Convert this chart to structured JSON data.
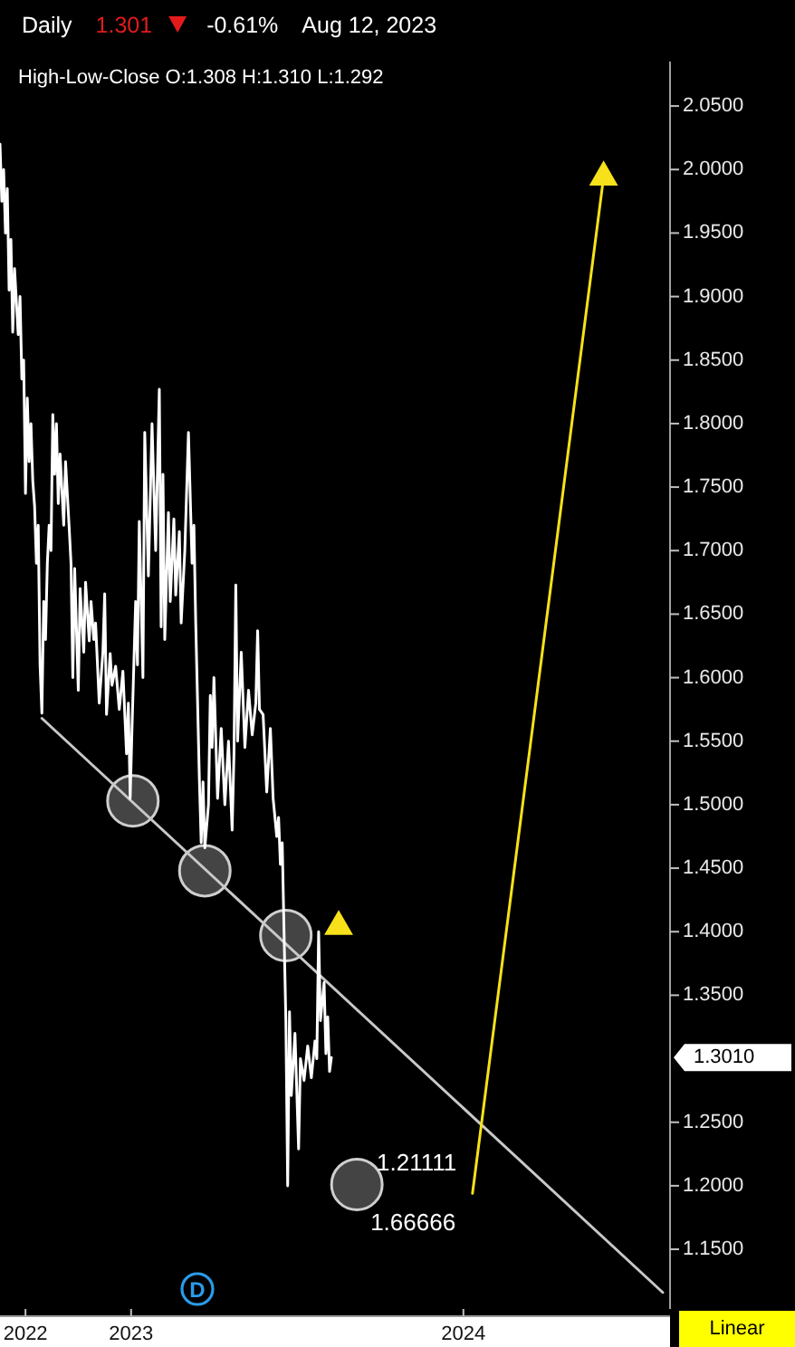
{
  "chart_data": {
    "type": "line",
    "title": "Daily",
    "subtitle": "High-Low-Close O:1.308 H:1.310 L:1.292",
    "x": [
      "2022-08-10",
      "2022-08-12",
      "2022-08-14",
      "2022-08-16",
      "2022-08-18",
      "2022-08-20",
      "2022-08-22",
      "2022-08-24",
      "2022-08-26",
      "2022-08-30",
      "2022-09-01",
      "2022-09-03",
      "2022-09-05",
      "2022-09-07",
      "2022-09-09",
      "2022-09-11",
      "2022-09-13",
      "2022-09-15",
      "2022-09-17",
      "2022-09-19",
      "2022-09-21",
      "2022-09-23",
      "2022-09-25",
      "2022-09-27",
      "2022-09-29",
      "2022-10-01",
      "2022-10-03",
      "2022-10-05",
      "2022-10-07",
      "2022-10-09",
      "2022-10-11",
      "2022-10-13",
      "2022-10-15",
      "2022-10-19",
      "2022-10-21",
      "2022-10-25",
      "2022-10-27",
      "2022-10-29",
      "2022-10-31",
      "2022-11-04",
      "2022-11-06",
      "2022-11-10",
      "2022-11-12",
      "2022-11-16",
      "2022-11-18",
      "2022-11-21",
      "2022-11-23",
      "2022-11-27",
      "2022-12-01",
      "2022-12-03",
      "2022-12-05",
      "2022-12-09",
      "2022-12-11",
      "2022-12-15",
      "2022-12-19",
      "2022-12-23",
      "2022-12-27",
      "2022-12-29",
      "2022-12-31",
      "2023-01-02",
      "2023-01-06",
      "2023-01-08",
      "2023-01-10",
      "2023-01-14",
      "2023-01-16",
      "2023-01-20",
      "2023-01-24",
      "2023-01-28",
      "2023-02-01",
      "2023-02-03",
      "2023-02-05",
      "2023-02-07",
      "2023-02-11",
      "2023-02-13",
      "2023-02-17",
      "2023-02-19",
      "2023-02-23",
      "2023-02-25",
      "2023-03-01",
      "2023-03-05",
      "2023-03-09",
      "2023-03-11",
      "2023-03-13",
      "2023-03-17",
      "2023-03-19",
      "2023-03-21",
      "2023-03-23",
      "2023-03-27",
      "2023-03-29",
      "2023-03-31",
      "2023-04-02",
      "2023-04-06",
      "2023-04-10",
      "2023-04-14",
      "2023-04-18",
      "2023-04-22",
      "2023-04-24",
      "2023-04-26",
      "2023-04-28",
      "2023-05-02",
      "2023-05-06",
      "2023-05-10",
      "2023-05-14",
      "2023-05-18",
      "2023-05-20",
      "2023-05-22",
      "2023-05-26",
      "2023-05-30",
      "2023-06-03",
      "2023-06-06",
      "2023-06-10",
      "2023-06-12",
      "2023-06-14",
      "2023-06-16",
      "2023-06-18",
      "2023-06-20",
      "2023-06-22",
      "2023-06-24",
      "2023-06-26",
      "2023-06-30",
      "2023-07-04",
      "2023-07-06",
      "2023-07-10",
      "2023-07-14",
      "2023-07-18",
      "2023-07-22",
      "2023-07-24",
      "2023-07-26",
      "2023-07-28",
      "2023-08-01",
      "2023-08-03",
      "2023-08-05",
      "2023-08-07",
      "2023-08-09"
    ],
    "series": [
      {
        "type": "scatter",
        "color": "#4a4a4a",
        "marker": "circle",
        "x": [
          "2023-01-03",
          "2023-03-23",
          "2023-06-20",
          "2023-09-06"
        ],
        "values": [
          1.503,
          1.448,
          1.397,
          1.201
        ]
      },
      {
        "type": "line",
        "color": "#c8c8c8",
        "x": [
          "2022-09-25",
          "2024-08-07"
        ],
        "values": [
          1.568,
          1.116
        ]
      },
      {
        "color": "#ffffff",
        "values": [
          2.02,
          1.975,
          2.0,
          1.95,
          1.985,
          1.905,
          1.945,
          1.872,
          1.922,
          1.87,
          1.9,
          1.835,
          1.85,
          1.745,
          1.82,
          1.77,
          1.8,
          1.755,
          1.735,
          1.69,
          1.72,
          1.61,
          1.572,
          1.66,
          1.63,
          1.69,
          1.72,
          1.7,
          1.807,
          1.76,
          1.8,
          1.737,
          1.776,
          1.72,
          1.77,
          1.718,
          1.69,
          1.6,
          1.686,
          1.59,
          1.67,
          1.62,
          1.675,
          1.629,
          1.66,
          1.63,
          1.643,
          1.58,
          1.62,
          1.666,
          1.571,
          1.619,
          1.594,
          1.609,
          1.575,
          1.605,
          1.54,
          1.58,
          1.505,
          1.56,
          1.66,
          1.61,
          1.723,
          1.6,
          1.793,
          1.68,
          1.8,
          1.7,
          1.827,
          1.64,
          1.76,
          1.63,
          1.73,
          1.66,
          1.725,
          1.665,
          1.715,
          1.643,
          1.7,
          1.793,
          1.69,
          1.72,
          1.643,
          1.52,
          1.47,
          1.518,
          1.466,
          1.5,
          1.586,
          1.545,
          1.6,
          1.505,
          1.56,
          1.5,
          1.55,
          1.48,
          1.54,
          1.673,
          1.55,
          1.62,
          1.545,
          1.59,
          1.555,
          1.58,
          1.637,
          1.575,
          1.571,
          1.51,
          1.56,
          1.505,
          1.475,
          1.49,
          1.453,
          1.47,
          1.4,
          1.33,
          1.2,
          1.337,
          1.271,
          1.32,
          1.229,
          1.3,
          1.283,
          1.31,
          1.285,
          1.314,
          1.3,
          1.4,
          1.33,
          1.36,
          1.304,
          1.333,
          1.29,
          1.301
        ]
      },
      {
        "type": "line",
        "color": "#f7e11b",
        "x": [
          "2024-01-11",
          "2024-06-03"
        ],
        "values": [
          1.194,
          1.994
        ]
      },
      {
        "type": "scatter",
        "color": "#f7e11b",
        "marker": "triangle",
        "x": [
          "2024-06-03",
          "2023-08-17"
        ],
        "values": [
          1.994,
          1.404
        ]
      }
    ],
    "xlim": [
      "2022-08-10",
      "2024-08-15"
    ],
    "xticks": [
      {
        "value": "2022-09-07",
        "label": "2022"
      },
      {
        "value": "2023-01-01",
        "label": "2023"
      },
      {
        "value": "2024-01-01",
        "label": "2024"
      }
    ],
    "ylim": [
      1.103,
      2.085
    ],
    "yticks": [
      {
        "value": 1.15,
        "label": "1.1500"
      },
      {
        "value": 1.2,
        "label": "1.2000"
      },
      {
        "value": 1.25,
        "label": "1.2500"
      },
      {
        "value": 1.35,
        "label": "1.3500"
      },
      {
        "value": 1.4,
        "label": "1.4000"
      },
      {
        "value": 1.45,
        "label": "1.4500"
      },
      {
        "value": 1.5,
        "label": "1.5000"
      },
      {
        "value": 1.55,
        "label": "1.5500"
      },
      {
        "value": 1.6,
        "label": "1.6000"
      },
      {
        "value": 1.65,
        "label": "1.6500"
      },
      {
        "value": 1.7,
        "label": "1.7000"
      },
      {
        "value": 1.75,
        "label": "1.7500"
      },
      {
        "value": 1.8,
        "label": "1.8000"
      },
      {
        "value": 1.85,
        "label": "1.8500"
      },
      {
        "value": 1.9,
        "label": "1.9000"
      },
      {
        "value": 1.95,
        "label": "1.9500"
      },
      {
        "value": 2.0,
        "label": "2.0000"
      },
      {
        "value": 2.05,
        "label": "2.0500"
      }
    ],
    "annotations": [
      "1.301",
      "-0.61%",
      "Aug 12, 2023",
      "Linear",
      "1.3010",
      "D",
      "1.21111",
      "1.66666"
    ]
  }
}
